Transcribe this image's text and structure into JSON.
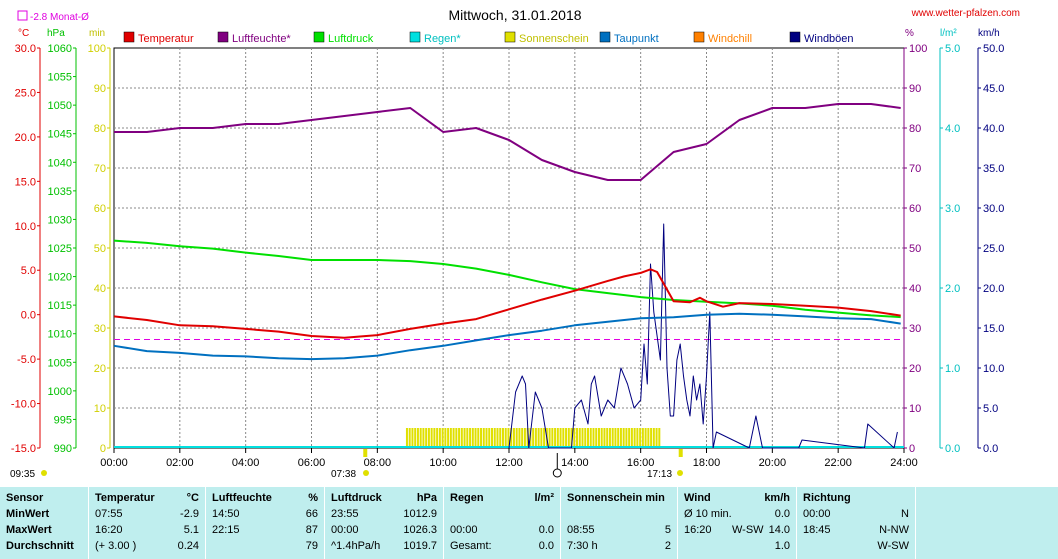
{
  "chart_data": {
    "type": "line",
    "title": "Mittwoch, 31.01.2018",
    "website": "www.wetter-pfalzen.com",
    "month_avg": "-2.8 Monat-Ø",
    "x_ticks": [
      "00:00",
      "02:00",
      "04:00",
      "06:00",
      "08:00",
      "10:00",
      "12:00",
      "14:00",
      "16:00",
      "18:00",
      "20:00",
      "22:00",
      "24:00"
    ],
    "axes": {
      "temp": {
        "unit": "°C",
        "min": -15,
        "max": 30,
        "ticks": [
          "30.0",
          "25.0",
          "20.0",
          "15.0",
          "10.0",
          "5.0",
          "0.0",
          "-5.0",
          "-10.0",
          "-15.0"
        ]
      },
      "pressure": {
        "unit": "hPa",
        "min": 990,
        "max": 1060,
        "ticks": [
          "1060",
          "1055",
          "1050",
          "1045",
          "1040",
          "1035",
          "1030",
          "1025",
          "1020",
          "1015",
          "1010",
          "1005",
          "1000",
          "995",
          "990"
        ]
      },
      "sun_min": {
        "unit": "min",
        "min": 0,
        "max": 100,
        "ticks": [
          "100",
          "90",
          "80",
          "70",
          "60",
          "50",
          "40",
          "30",
          "20",
          "10",
          "0"
        ]
      },
      "humidity": {
        "unit": "%",
        "min": 0,
        "max": 100,
        "ticks": [
          "100",
          "90",
          "80",
          "70",
          "60",
          "50",
          "40",
          "30",
          "20",
          "10",
          "0"
        ]
      },
      "rain": {
        "unit": "l/m²",
        "min": 0,
        "max": 5,
        "ticks": [
          "5.0",
          "4.0",
          "3.0",
          "2.0",
          "1.0",
          "0.0"
        ]
      },
      "wind": {
        "unit": "km/h",
        "min": 0,
        "max": 50,
        "ticks": [
          "50.0",
          "45.0",
          "40.0",
          "35.0",
          "30.0",
          "25.0",
          "20.0",
          "15.0",
          "10.0",
          "5.0",
          "0.0"
        ]
      }
    },
    "legend": [
      {
        "name": "Temperatur",
        "color": "#e00000"
      },
      {
        "name": "Luftfeuchte*",
        "color": "#800080"
      },
      {
        "name": "Luftdruck",
        "color": "#00e000"
      },
      {
        "name": "Regen*",
        "color": "#00e0e0"
      },
      {
        "name": "Sonnenschein",
        "color": "#e0e000"
      },
      {
        "name": "Taupunkt",
        "color": "#0070c0"
      },
      {
        "name": "Windchill",
        "color": "#ff8000"
      },
      {
        "name": "Windböen",
        "color": "#000080"
      }
    ],
    "month_avg_value": -2.8,
    "series": {
      "temperature": {
        "x": [
          0,
          1,
          2,
          3,
          4,
          5,
          6,
          7,
          8,
          9,
          10,
          11,
          12,
          13,
          14,
          15,
          15.5,
          16,
          16.3,
          16.5,
          17,
          17.5,
          17.8,
          18,
          18.5,
          19,
          20,
          21,
          22,
          23,
          23.9
        ],
        "y": [
          -0.2,
          -0.6,
          -1.2,
          -1.3,
          -1.6,
          -1.9,
          -2.4,
          -2.6,
          -2.3,
          -1.6,
          -1.0,
          -0.5,
          0.6,
          1.7,
          2.7,
          3.8,
          4.3,
          4.7,
          5.1,
          4.8,
          1.5,
          1.4,
          1.9,
          1.5,
          0.9,
          1.3,
          1.2,
          1.0,
          0.8,
          0.4,
          -0.1
        ]
      },
      "humidity": {
        "x": [
          0,
          1,
          2,
          3,
          4,
          5,
          6,
          7,
          8,
          9,
          10,
          11,
          12,
          13,
          14,
          14.5,
          15,
          16,
          17,
          17.5,
          18,
          19,
          20,
          21,
          22,
          23,
          23.9
        ],
        "y": [
          79,
          79,
          80,
          80,
          81,
          81,
          82,
          83,
          84,
          85,
          79,
          80,
          77,
          72,
          69,
          68,
          67,
          67,
          74,
          75,
          76,
          82,
          85,
          85,
          86,
          86,
          85
        ]
      },
      "pressure": {
        "x": [
          0,
          1,
          2,
          3,
          4,
          5,
          6,
          7,
          8,
          9,
          10,
          11,
          12,
          13,
          14,
          15,
          16,
          17,
          18,
          19,
          20,
          21,
          22,
          23,
          23.9
        ],
        "y": [
          1026.3,
          1025.9,
          1025.3,
          1024.9,
          1024.2,
          1023.6,
          1022.9,
          1022.9,
          1022.9,
          1022.7,
          1022.2,
          1021.4,
          1020.3,
          1019.0,
          1017.8,
          1017.1,
          1016.4,
          1015.9,
          1015.6,
          1015.3,
          1014.9,
          1014.2,
          1013.7,
          1013.2,
          1012.9
        ]
      },
      "dewpoint": {
        "x": [
          0,
          1,
          2,
          3,
          4,
          5,
          6,
          7,
          8,
          9,
          10,
          11,
          12,
          13,
          14,
          15,
          16,
          17,
          18,
          19,
          20,
          21,
          22,
          23,
          23.9
        ],
        "y": [
          -3.5,
          -4.1,
          -4.3,
          -4.6,
          -4.7,
          -4.9,
          -5.0,
          -4.9,
          -4.6,
          -4.0,
          -3.5,
          -2.9,
          -2.3,
          -1.8,
          -1.2,
          -0.8,
          -0.4,
          -0.3,
          0.0,
          0.1,
          0.0,
          -0.2,
          -0.4,
          -0.5,
          -1.0
        ]
      },
      "wind_gusts": {
        "x": [
          12.0,
          12.2,
          12.4,
          12.5,
          12.6,
          12.8,
          13.0,
          13.2,
          13.9,
          14.0,
          14.2,
          14.4,
          14.5,
          14.6,
          14.8,
          15.0,
          15.2,
          15.4,
          15.6,
          15.8,
          16.0,
          16.1,
          16.2,
          16.3,
          16.4,
          16.5,
          16.6,
          16.7,
          16.8,
          16.9,
          17.0,
          17.1,
          17.2,
          17.3,
          17.4,
          17.5,
          17.6,
          17.7,
          17.8,
          17.9,
          18.0,
          18.1,
          18.2,
          18.3,
          19.3,
          19.5,
          19.7,
          20.8,
          20.9,
          22.8,
          22.9,
          23.7,
          23.8
        ],
        "y": [
          0,
          7,
          9,
          8,
          0,
          7,
          5,
          0,
          0,
          5,
          6,
          3,
          8,
          9,
          4,
          6,
          5,
          10,
          8,
          5,
          6,
          13,
          8,
          23,
          17,
          14,
          11,
          28,
          10,
          4,
          4,
          11,
          13,
          9,
          6,
          4,
          9,
          6,
          8,
          3,
          9,
          17,
          0,
          2,
          0,
          4,
          0,
          0,
          1,
          0,
          3,
          0,
          2
        ]
      },
      "sunshine_intervals": [
        [
          8.9,
          16.6
        ]
      ]
    },
    "markers": {
      "sunrise": "07:38",
      "sunset": "17:13",
      "noon_marker": "13:28",
      "daylength": "09:35"
    }
  },
  "table": {
    "sensor": {
      "header": "Sensor",
      "rows": [
        "MinWert",
        "MaxWert",
        "Durchschnitt"
      ]
    },
    "temperature": {
      "header": "Temperatur",
      "unit": "°C",
      "rows": [
        [
          "07:55",
          "-2.9"
        ],
        [
          "16:20",
          "5.1"
        ],
        [
          "(+ 3.00 )",
          "0.24"
        ]
      ]
    },
    "humidity": {
      "header": "Luftfeuchte",
      "unit": "%",
      "rows": [
        [
          "14:50",
          "66"
        ],
        [
          "22:15",
          "87"
        ],
        [
          "",
          "79"
        ]
      ]
    },
    "pressure": {
      "header": "Luftdruck",
      "unit": "hPa",
      "rows": [
        [
          "23:55",
          "1012.9"
        ],
        [
          "00:00",
          "1026.3"
        ],
        [
          "^1.4hPa/h",
          "1019.7"
        ]
      ]
    },
    "rain": {
      "header": "Regen",
      "unit": "l/m²",
      "rows": [
        [
          "",
          ""
        ],
        [
          "00:00",
          "0.0"
        ],
        [
          "Gesamt:",
          "0.0"
        ]
      ]
    },
    "sunshine": {
      "header": "Sonnenschein min",
      "rows": [
        [
          "",
          ""
        ],
        [
          "08:55",
          "5"
        ],
        [
          "7:30 h",
          "2"
        ]
      ]
    },
    "wind": {
      "header": "Wind",
      "unit": "km/h",
      "rows": [
        [
          "Ø 10 min.",
          "",
          "0.0"
        ],
        [
          "16:20",
          "W-SW",
          "14.0"
        ],
        [
          "",
          "",
          "1.0"
        ]
      ]
    },
    "direction": {
      "header": "Richtung",
      "rows": [
        [
          "00:00",
          "N"
        ],
        [
          "18:45",
          "N-NW"
        ],
        [
          "",
          "W-SW"
        ]
      ]
    }
  }
}
